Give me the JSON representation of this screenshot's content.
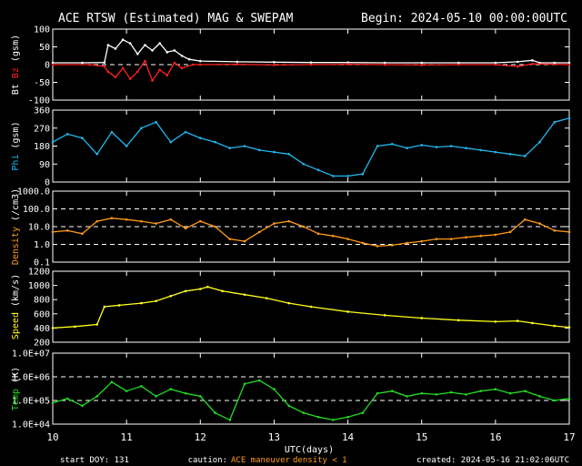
{
  "header": {
    "title": "ACE RTSW (Estimated) MAG & SWEPAM",
    "begin": "Begin: 2024-05-10 00:00:00UTC"
  },
  "footer": {
    "start_doy": "start DOY: 131",
    "caution_label": "caution:",
    "caution_maneuver": "ACE maneuver",
    "caution_density": "density < 1",
    "created": "created: 2024-05-16 21:02:06UTC"
  },
  "colors": {
    "bt": "#ffffff",
    "bz": "#ff2020",
    "phi": "#22b7ee",
    "density": "#ff9a1a",
    "speed": "#ffff1a",
    "temp": "#22dd22",
    "frame": "#ffffff",
    "bg": "#000000"
  },
  "chart_data": {
    "type": "line",
    "xlabel": "UTC(days)",
    "xlim": [
      10,
      17
    ],
    "xticks": [
      "10",
      "11",
      "12",
      "13",
      "14",
      "15",
      "16",
      "17"
    ],
    "panels": [
      {
        "id": "mag",
        "ylabel_parts": [
          {
            "text": "Bt",
            "color": "#ffffff"
          },
          {
            "text": "Bz",
            "color": "#ff2020"
          },
          {
            "text": "(gsm)",
            "color": "#ffffff"
          }
        ],
        "scale": "linear",
        "ylim": [
          -100,
          100
        ],
        "yticks": [
          {
            "v": 100,
            "l": "100"
          },
          {
            "v": 50,
            "l": "50"
          },
          {
            "v": 0,
            "l": "0"
          },
          {
            "v": -50,
            "l": "-50"
          },
          {
            "v": -100,
            "l": "-100"
          }
        ],
        "dashed": [
          0
        ],
        "series": [
          {
            "name": "Bt",
            "color": "#ffffff",
            "x": [
              10.0,
              10.4,
              10.7,
              10.75,
              10.85,
              10.95,
              11.05,
              11.15,
              11.25,
              11.35,
              11.45,
              11.55,
              11.65,
              11.75,
              11.85,
              12.0,
              12.5,
              13.0,
              13.5,
              14.0,
              14.5,
              15.0,
              15.5,
              16.0,
              16.3,
              16.5,
              16.6,
              16.8,
              17.0
            ],
            "y": [
              5,
              5,
              6,
              55,
              45,
              70,
              60,
              30,
              55,
              40,
              60,
              35,
              40,
              25,
              15,
              10,
              8,
              7,
              6,
              6,
              5,
              5,
              5,
              5,
              8,
              12,
              5,
              5,
              5
            ]
          },
          {
            "name": "Bz",
            "color": "#ff2020",
            "x": [
              10.0,
              10.5,
              10.7,
              10.75,
              10.85,
              10.95,
              11.05,
              11.15,
              11.25,
              11.35,
              11.45,
              11.55,
              11.65,
              11.75,
              11.9,
              12.0,
              12.5,
              13.0,
              13.5,
              14.0,
              14.5,
              15.0,
              15.5,
              16.0,
              16.3,
              16.5,
              17.0
            ],
            "y": [
              0,
              0,
              -5,
              -20,
              -35,
              -10,
              -40,
              -20,
              10,
              -45,
              -15,
              -30,
              5,
              -10,
              0,
              0,
              1,
              -1,
              0,
              1,
              0,
              -1,
              0,
              0,
              -5,
              2,
              0
            ]
          }
        ]
      },
      {
        "id": "phi",
        "ylabel_parts": [
          {
            "text": "Phi",
            "color": "#22b7ee"
          },
          {
            "text": "(gsm)",
            "color": "#ffffff"
          }
        ],
        "scale": "linear",
        "ylim": [
          0,
          360
        ],
        "yticks": [
          {
            "v": 360,
            "l": "360"
          },
          {
            "v": 270,
            "l": "270"
          },
          {
            "v": 180,
            "l": "180"
          },
          {
            "v": 90,
            "l": "90"
          },
          {
            "v": 0,
            "l": "0"
          }
        ],
        "dashed": [],
        "series": [
          {
            "name": "Phi",
            "color": "#22b7ee",
            "x": [
              10.0,
              10.2,
              10.4,
              10.6,
              10.8,
              11.0,
              11.2,
              11.4,
              11.6,
              11.8,
              12.0,
              12.2,
              12.4,
              12.6,
              12.8,
              13.0,
              13.2,
              13.4,
              13.6,
              13.8,
              14.0,
              14.2,
              14.4,
              14.6,
              14.8,
              15.0,
              15.2,
              15.4,
              15.6,
              15.8,
              16.0,
              16.2,
              16.4,
              16.6,
              16.8,
              17.0
            ],
            "y": [
              200,
              240,
              220,
              140,
              250,
              180,
              270,
              300,
              200,
              250,
              220,
              200,
              170,
              180,
              160,
              150,
              140,
              90,
              60,
              30,
              30,
              40,
              180,
              190,
              170,
              185,
              175,
              180,
              170,
              160,
              150,
              140,
              130,
              200,
              300,
              320
            ]
          }
        ]
      },
      {
        "id": "density",
        "ylabel_parts": [
          {
            "text": "Density",
            "color": "#ff9a1a"
          },
          {
            "text": "(/cm3)",
            "color": "#ffffff"
          }
        ],
        "scale": "log",
        "ylim": [
          0.1,
          1000
        ],
        "yticks": [
          {
            "v": 1000,
            "l": "1000.0"
          },
          {
            "v": 100,
            "l": "100.0"
          },
          {
            "v": 10,
            "l": "10.0"
          },
          {
            "v": 1,
            "l": "1.0"
          },
          {
            "v": 0.1,
            "l": "0.1"
          }
        ],
        "dashed": [
          100,
          10,
          1
        ],
        "series": [
          {
            "name": "Density",
            "color": "#ff9a1a",
            "x": [
              10.0,
              10.2,
              10.4,
              10.6,
              10.8,
              11.0,
              11.2,
              11.4,
              11.6,
              11.8,
              12.0,
              12.2,
              12.4,
              12.6,
              12.8,
              13.0,
              13.2,
              13.4,
              13.6,
              13.8,
              14.0,
              14.2,
              14.4,
              14.6,
              14.8,
              15.0,
              15.2,
              15.4,
              15.6,
              15.8,
              16.0,
              16.2,
              16.4,
              16.6,
              16.8,
              17.0
            ],
            "y": [
              5,
              6,
              4,
              20,
              30,
              25,
              20,
              15,
              25,
              8,
              20,
              10,
              2,
              1.5,
              5,
              15,
              20,
              10,
              4,
              3,
              2,
              1.2,
              0.8,
              0.9,
              1.2,
              1.5,
              2,
              2,
              2.5,
              3,
              3.5,
              5,
              25,
              15,
              6,
              5
            ]
          }
        ]
      },
      {
        "id": "speed",
        "ylabel_parts": [
          {
            "text": "Speed",
            "color": "#ffff1a"
          },
          {
            "text": "(km/s)",
            "color": "#ffffff"
          }
        ],
        "scale": "linear",
        "ylim": [
          200,
          1200
        ],
        "yticks": [
          {
            "v": 1200,
            "l": "1200"
          },
          {
            "v": 1000,
            "l": "1000"
          },
          {
            "v": 800,
            "l": "800"
          },
          {
            "v": 600,
            "l": "600"
          },
          {
            "v": 400,
            "l": "400"
          },
          {
            "v": 200,
            "l": "200"
          }
        ],
        "dashed": [],
        "series": [
          {
            "name": "Speed",
            "color": "#ffff1a",
            "x": [
              10.0,
              10.3,
              10.6,
              10.7,
              10.9,
              11.2,
              11.4,
              11.6,
              11.8,
              12.0,
              12.1,
              12.3,
              12.6,
              12.9,
              13.2,
              13.5,
              14.0,
              14.5,
              15.0,
              15.5,
              16.0,
              16.3,
              16.5,
              16.8,
              17.0
            ],
            "y": [
              400,
              420,
              450,
              700,
              720,
              750,
              780,
              850,
              920,
              950,
              980,
              920,
              870,
              820,
              750,
              700,
              630,
              580,
              540,
              510,
              490,
              500,
              470,
              430,
              410
            ]
          }
        ]
      },
      {
        "id": "temp",
        "ylabel_parts": [
          {
            "text": "Temp",
            "color": "#22dd22"
          },
          {
            "text": "(K)",
            "color": "#ffffff"
          }
        ],
        "scale": "log",
        "ylim": [
          10000,
          10000000
        ],
        "yticks": [
          {
            "v": 10000000,
            "l": "1.0E+07"
          },
          {
            "v": 1000000,
            "l": "1.0E+06"
          },
          {
            "v": 100000,
            "l": "1.0E+05"
          },
          {
            "v": 10000,
            "l": "1.0E+04"
          }
        ],
        "dashed": [
          1000000,
          100000
        ],
        "series": [
          {
            "name": "Temp",
            "color": "#22dd22",
            "x": [
              10.0,
              10.2,
              10.4,
              10.6,
              10.8,
              11.0,
              11.2,
              11.4,
              11.6,
              11.8,
              12.0,
              12.2,
              12.4,
              12.6,
              12.8,
              13.0,
              13.2,
              13.4,
              13.6,
              13.8,
              14.0,
              14.2,
              14.4,
              14.6,
              14.8,
              15.0,
              15.2,
              15.4,
              15.6,
              15.8,
              16.0,
              16.2,
              16.4,
              16.6,
              16.8,
              17.0
            ],
            "y": [
              80000,
              120000,
              60000,
              150000,
              600000,
              250000,
              400000,
              150000,
              300000,
              200000,
              150000,
              30000,
              15000,
              500000,
              700000,
              300000,
              60000,
              30000,
              20000,
              15000,
              20000,
              30000,
              200000,
              250000,
              150000,
              200000,
              180000,
              220000,
              180000,
              250000,
              300000,
              200000,
              250000,
              150000,
              100000,
              120000
            ]
          }
        ]
      }
    ]
  }
}
